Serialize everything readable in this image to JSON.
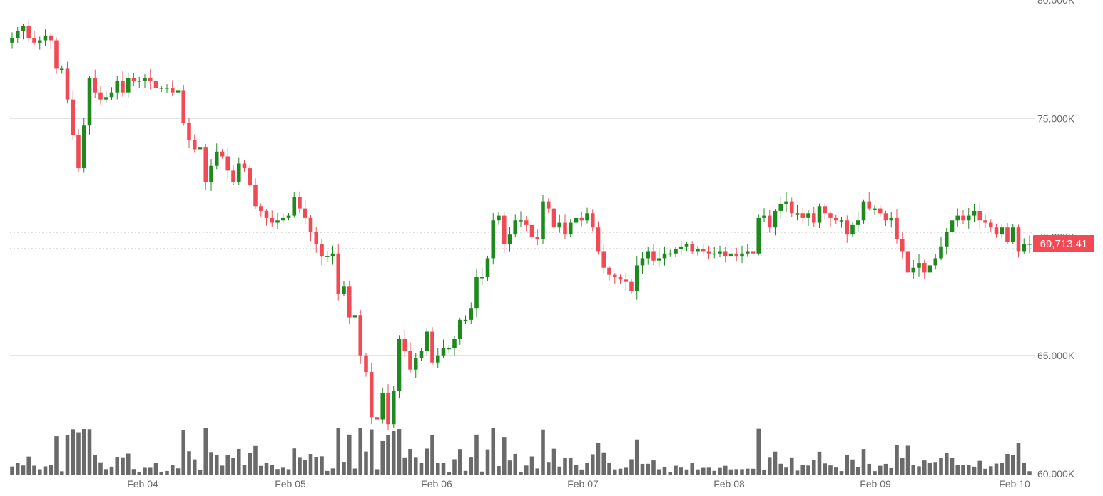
{
  "chart_data": {
    "type": "candlestick",
    "title": "",
    "xlabel": "",
    "ylabel": "",
    "ylim": [
      60000,
      80000
    ],
    "y_tick_values": [
      60000,
      65000,
      70000,
      75000,
      80000
    ],
    "y_tick_labels": [
      "60.000K",
      "65.000K",
      "70.000K",
      "75.000K",
      "80.000K"
    ],
    "x_tick_labels": [
      "Feb 04",
      "Feb 05",
      "Feb 06",
      "Feb 07",
      "Feb 08",
      "Feb 09",
      "Feb 10"
    ],
    "grid": "horizontal",
    "last_price": 69713.41,
    "last_price_label": "69,713.41",
    "reference_lines": [
      70200,
      69500
    ],
    "up_color": "#1e8a1e",
    "down_color": "#f24a55",
    "volume_color": "#6a6a6a",
    "price_tag_color": "#f24a55",
    "candles_close": [
      78400,
      78700,
      78900,
      78400,
      78200,
      78300,
      78500,
      78300,
      77100,
      77100,
      75800,
      74300,
      72900,
      74700,
      76700,
      76100,
      75800,
      75900,
      76100,
      76600,
      76100,
      76700,
      76600,
      76600,
      76700,
      76600,
      76300,
      76300,
      76300,
      76100,
      76200,
      74800,
      74100,
      73700,
      73800,
      72300,
      73000,
      73600,
      73400,
      72800,
      72300,
      73100,
      72900,
      72200,
      71300,
      71100,
      70800,
      70600,
      70700,
      70800,
      70900,
      71700,
      71200,
      70800,
      70200,
      69700,
      69200,
      69200,
      69300,
      67600,
      67900,
      66600,
      66700,
      65000,
      64300,
      62400,
      62300,
      63400,
      62100,
      63500,
      65700,
      65200,
      64400,
      64900,
      65200,
      66000,
      64700,
      65000,
      65300,
      65300,
      65700,
      66500,
      66500,
      67000,
      68300,
      68300,
      69100,
      70700,
      70900,
      69700,
      70100,
      70700,
      70700,
      70500,
      70000,
      69900,
      71500,
      71200,
      70400,
      70600,
      70100,
      70600,
      70800,
      70700,
      71000,
      70400,
      69400,
      68700,
      68400,
      68300,
      68200,
      68100,
      67700,
      68800,
      69100,
      69400,
      69000,
      69100,
      69300,
      69300,
      69500,
      69600,
      69700,
      69400,
      69500,
      69400,
      69300,
      69300,
      69400,
      69200,
      69300,
      69200,
      69300,
      69400,
      69300,
      70800,
      70900,
      70400,
      71100,
      71400,
      71500,
      71000,
      71000,
      70800,
      71000,
      70600,
      71300,
      71000,
      70800,
      70700,
      70700,
      70100,
      70500,
      70700,
      71500,
      71200,
      71200,
      71000,
      70700,
      70800,
      69900,
      69400,
      68500,
      68700,
      68900,
      68500,
      68800,
      69100,
      69600,
      70200,
      70700,
      70900,
      70700,
      70900,
      71100,
      70700,
      70600,
      70400,
      70100,
      70400,
      69800,
      70400,
      69400,
      69700,
      69713
    ]
  }
}
